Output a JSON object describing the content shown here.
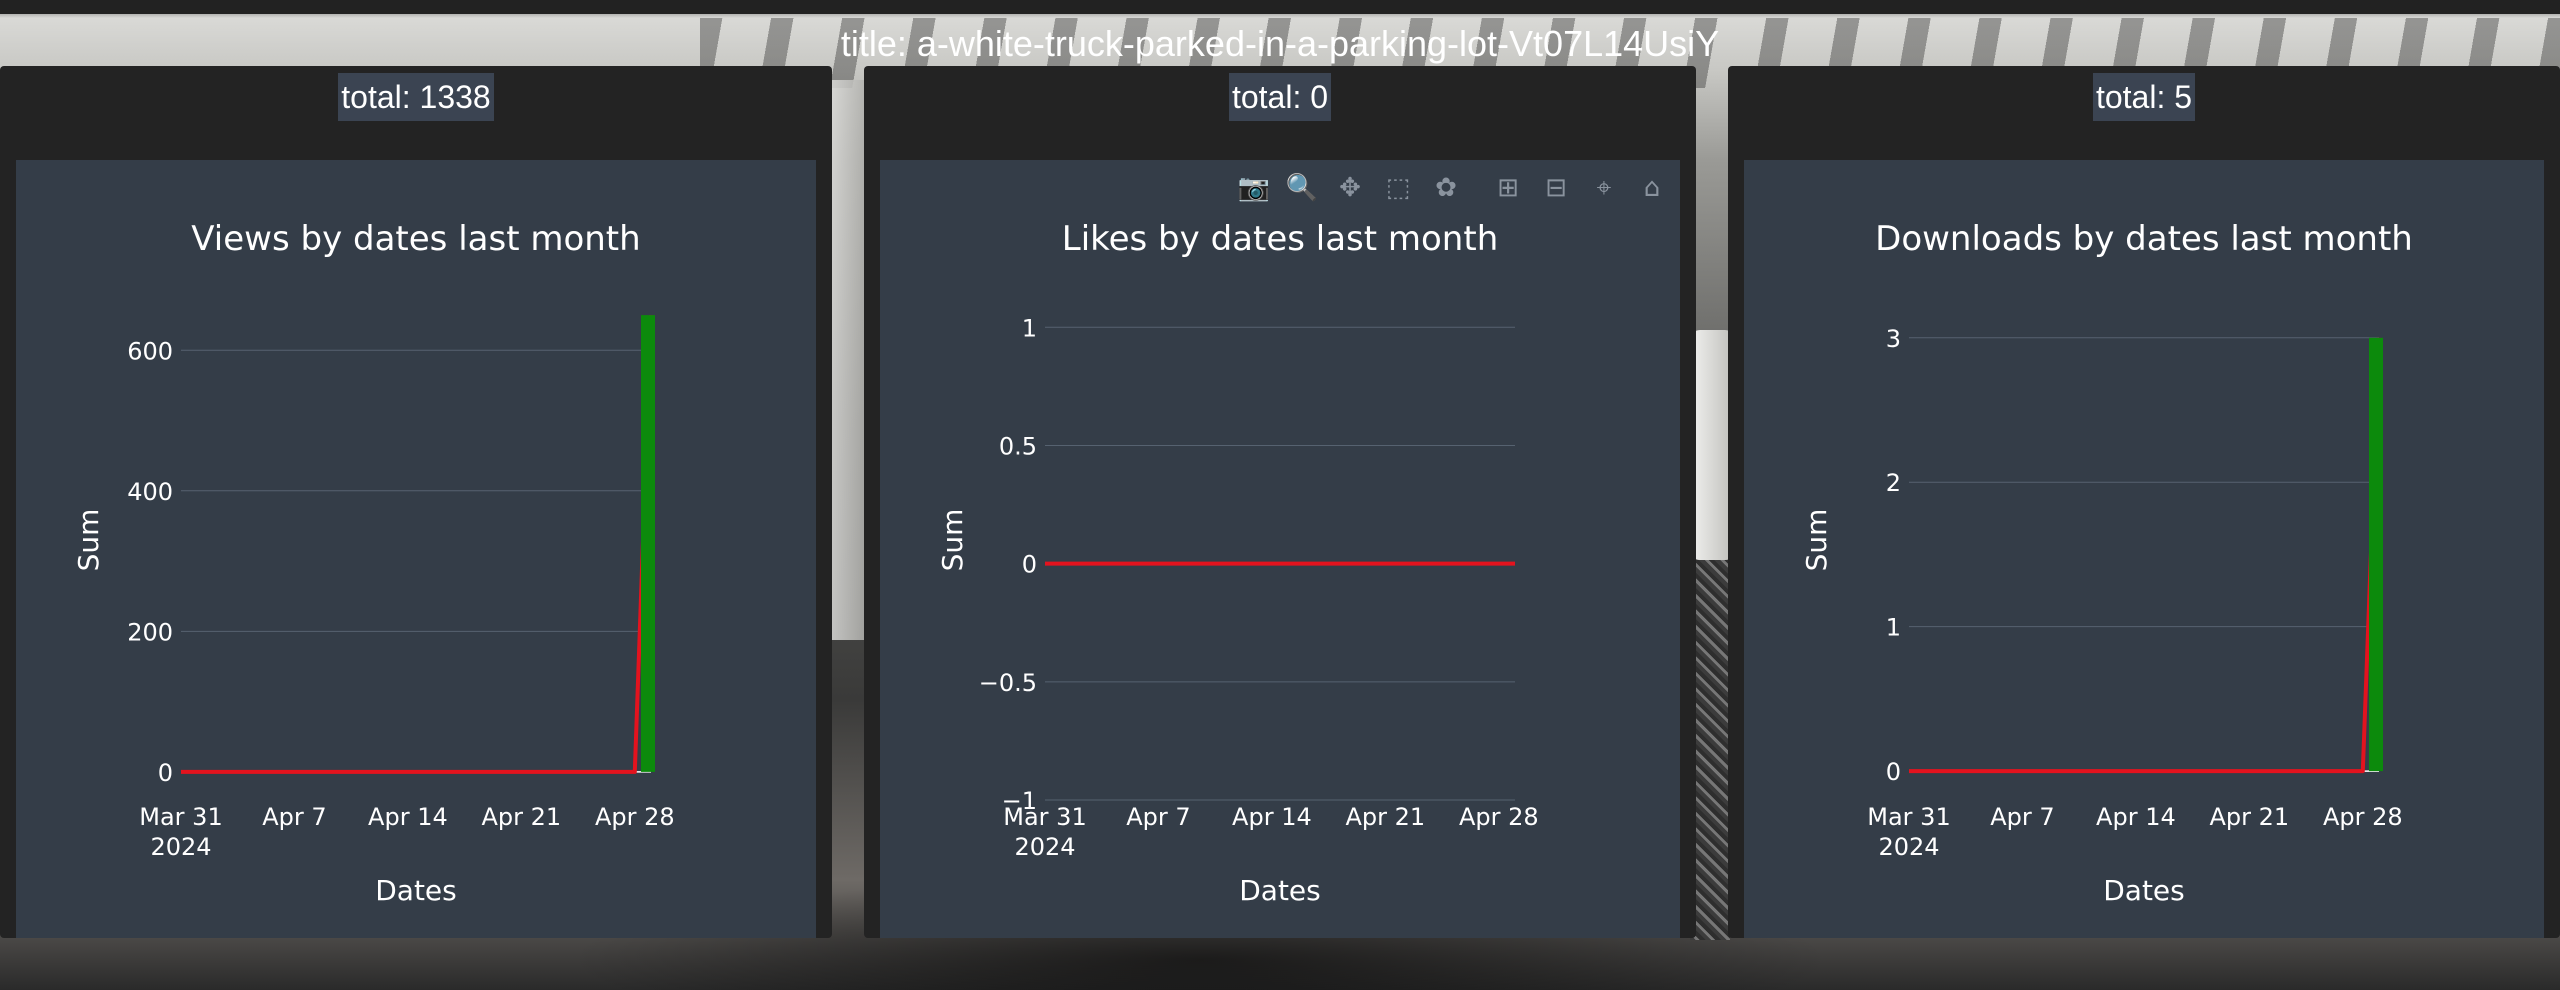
{
  "page": {
    "title": "title: a-white-truck-parked-in-a-parking-lot-Vt07L14UsiY"
  },
  "panels": [
    {
      "total_label": "total: 1338",
      "chart_data": {
        "type": "line",
        "title": "Views by dates last month",
        "xlabel": "Dates",
        "ylabel": "Sum",
        "x_ticks": [
          "Mar 31\n2024",
          "Apr 7",
          "Apr 14",
          "Apr 21",
          "Apr 28"
        ],
        "x_range": [
          "2024-03-31",
          "2024-04-29"
        ],
        "ylim": [
          -40,
          700
        ],
        "y_ticks": [
          0,
          200,
          400,
          600
        ],
        "y_tick_labels": [
          "0",
          "200",
          "400",
          "600"
        ],
        "series": [
          {
            "color": "#e3131e",
            "x": [
              "2024-03-31",
              "2024-04-28",
              "2024-04-29"
            ],
            "y": [
              0,
              0,
              650
            ]
          },
          {
            "color": "#0c8a0c",
            "style": "bar",
            "x": [
              "2024-04-29"
            ],
            "y": [
              650
            ]
          }
        ],
        "grid": true,
        "legend": "none"
      }
    },
    {
      "total_label": "total: 0",
      "chart_data": {
        "type": "line",
        "title": "Likes by dates last month",
        "xlabel": "Dates",
        "ylabel": "Sum",
        "x_ticks": [
          "Mar 31\n2024",
          "Apr 7",
          "Apr 14",
          "Apr 21",
          "Apr 28"
        ],
        "x_range": [
          "2024-03-31",
          "2024-04-29"
        ],
        "ylim": [
          -1,
          1.2
        ],
        "y_ticks": [
          -1,
          -0.5,
          0,
          0.5,
          1
        ],
        "y_tick_labels": [
          "−1",
          "−0.5",
          "0",
          "0.5",
          "1"
        ],
        "series": [
          {
            "color": "#e3131e",
            "x": [
              "2024-03-31",
              "2024-04-29"
            ],
            "y": [
              0,
              0
            ]
          }
        ],
        "grid": true,
        "legend": "none"
      },
      "modebar": [
        "camera-icon",
        "zoom-icon",
        "pan-icon",
        "box-select-icon",
        "lasso-icon",
        "zoom-in-icon",
        "zoom-out-icon",
        "autoscale-icon",
        "reset-axes-icon"
      ]
    },
    {
      "total_label": "total: 5",
      "chart_data": {
        "type": "line",
        "title": "Downloads by dates last month",
        "xlabel": "Dates",
        "ylabel": "Sum",
        "x_ticks": [
          "Mar 31\n2024",
          "Apr 7",
          "Apr 14",
          "Apr 21",
          "Apr 28"
        ],
        "x_range": [
          "2024-03-31",
          "2024-04-29"
        ],
        "ylim": [
          -0.2,
          3.4
        ],
        "y_ticks": [
          0,
          1,
          2,
          3
        ],
        "y_tick_labels": [
          "0",
          "1",
          "2",
          "3"
        ],
        "series": [
          {
            "color": "#e3131e",
            "x": [
              "2024-03-31",
              "2024-04-28",
              "2024-04-29"
            ],
            "y": [
              0,
              0,
              3
            ]
          },
          {
            "color": "#0c8a0c",
            "style": "bar",
            "x": [
              "2024-04-29"
            ],
            "y": [
              3
            ]
          }
        ],
        "grid": true,
        "legend": "none"
      }
    }
  ]
}
